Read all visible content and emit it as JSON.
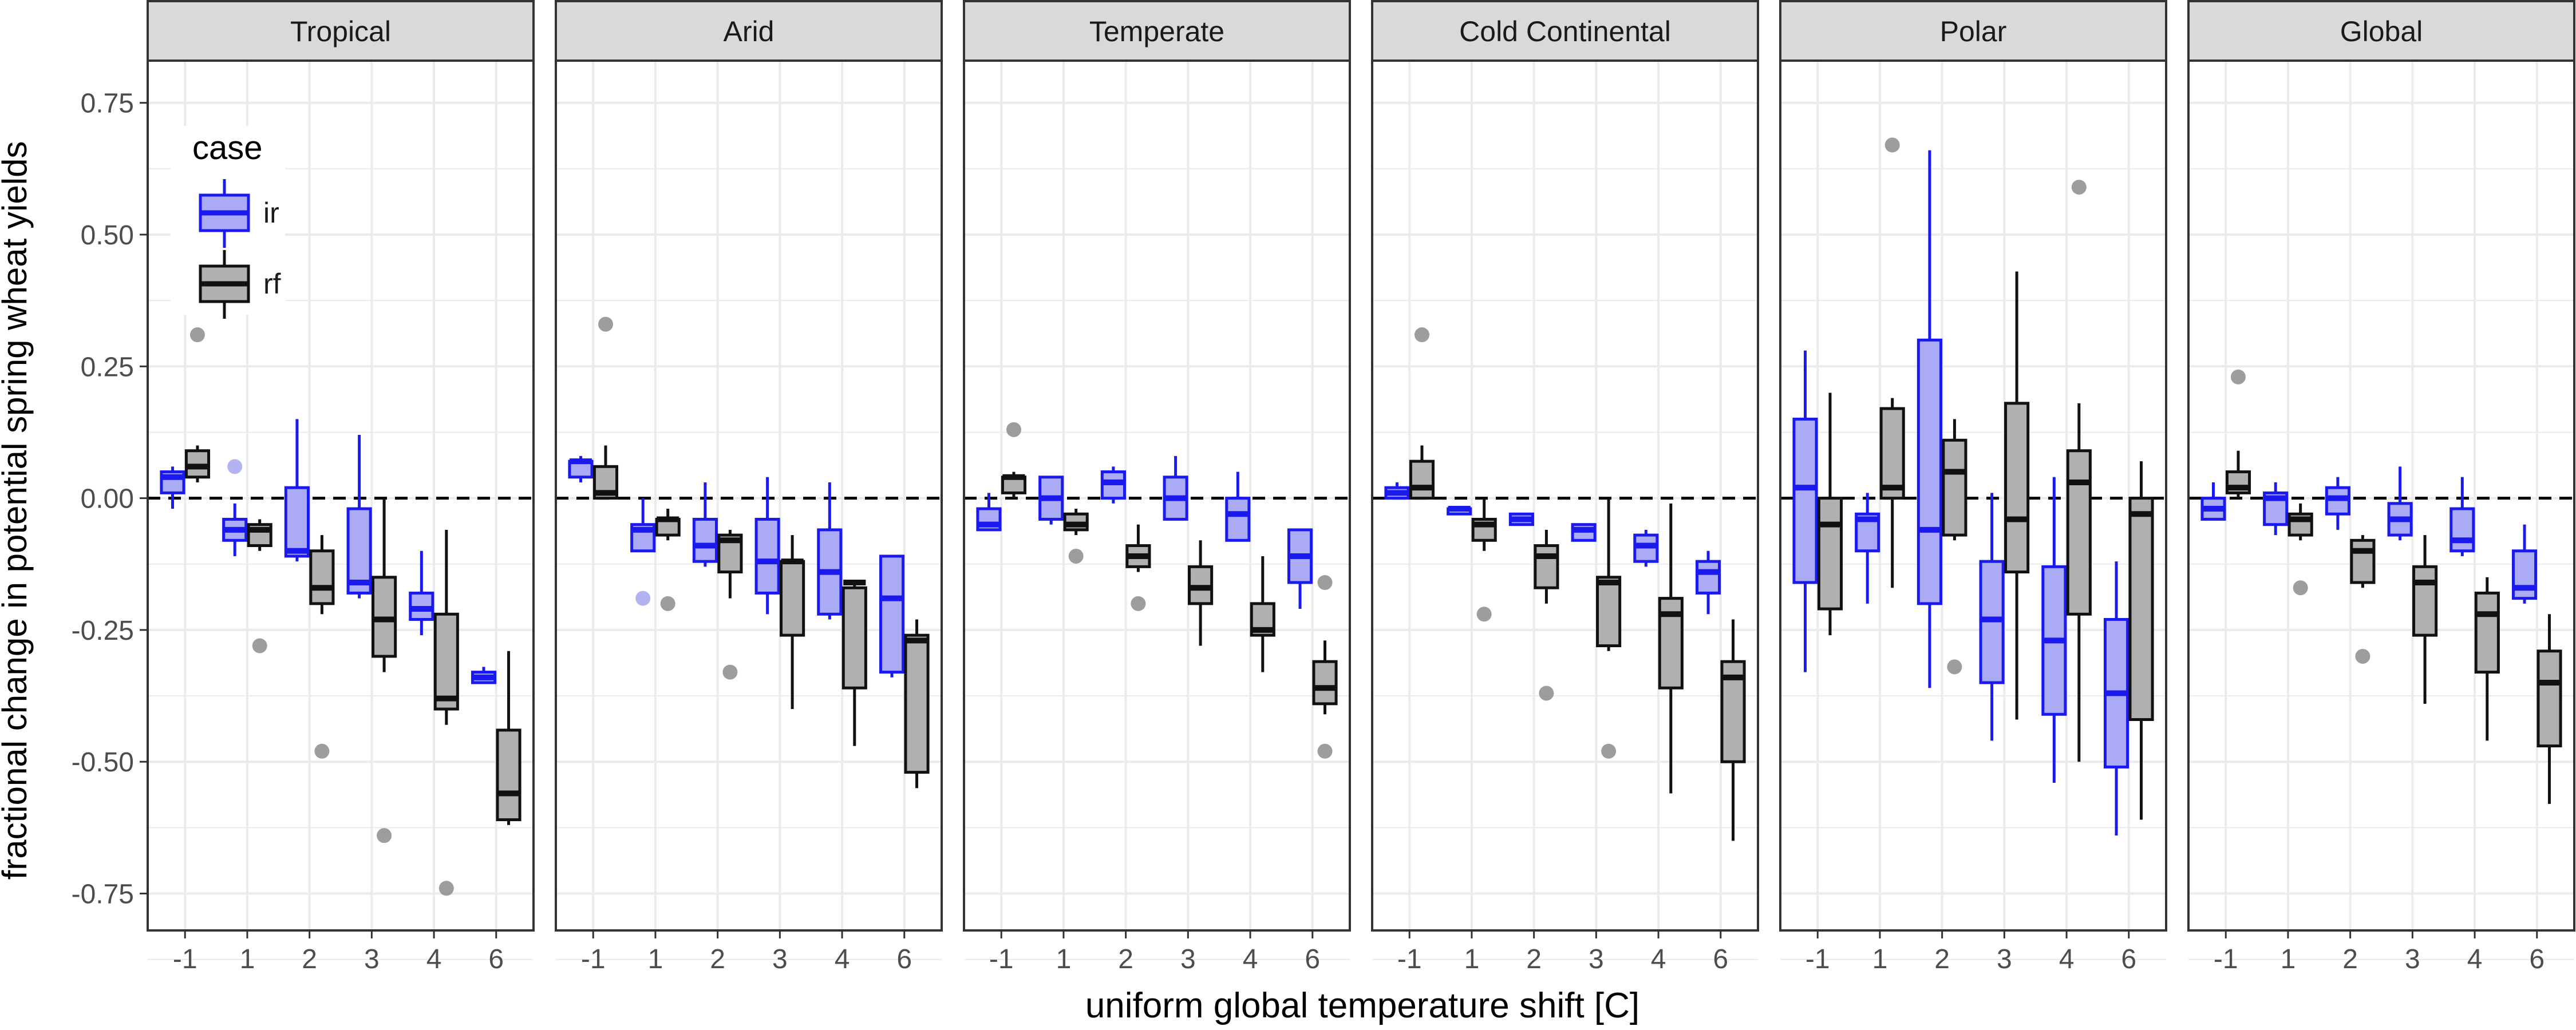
{
  "chart_data": {
    "type": "boxplot",
    "xlabel": "uniform global temperature shift [C]",
    "ylabel": "fractional change in potential spring wheat yields",
    "x_categories": [
      "-1",
      "1",
      "2",
      "3",
      "4",
      "6"
    ],
    "ylim": [
      -0.82,
      0.83
    ],
    "yticks": [
      -0.75,
      -0.5,
      -0.25,
      0.0,
      0.25,
      0.5,
      0.75
    ],
    "ytick_labels": [
      "-0.75",
      "-0.50",
      "-0.25",
      "0.00",
      "0.25",
      "0.50",
      "0.75"
    ],
    "reference_line": {
      "y": 0,
      "style": "dashed"
    },
    "grid": true,
    "legend": {
      "title": "case",
      "position": "top-left inside first panel",
      "entries": [
        {
          "label": "ir",
          "fill": "#aaaaf5",
          "stroke": "#1a1aee"
        },
        {
          "label": "rf",
          "fill": "#b0b0b0",
          "stroke": "#111111"
        }
      ]
    },
    "series_colors": {
      "ir": {
        "fill": "#aaaaf5",
        "stroke": "#1a1aee",
        "outlier": "#a6a6f0"
      },
      "rf": {
        "fill": "#b0b0b0",
        "stroke": "#111111",
        "outlier": "#8c8c8c"
      }
    },
    "panels": [
      {
        "name": "Tropical",
        "ir": [
          [
            -0.02,
            0.01,
            0.04,
            0.05,
            0.06
          ],
          [
            -0.11,
            -0.08,
            -0.06,
            -0.04,
            -0.01
          ],
          [
            -0.12,
            -0.11,
            -0.1,
            0.02,
            0.15
          ],
          [
            -0.19,
            -0.18,
            -0.16,
            -0.02,
            0.12
          ],
          [
            -0.26,
            -0.23,
            -0.21,
            -0.18,
            -0.1
          ],
          [
            -0.35,
            -0.35,
            -0.34,
            -0.33,
            -0.32
          ]
        ],
        "rf": [
          [
            0.03,
            0.04,
            0.06,
            0.09,
            0.1
          ],
          [
            -0.1,
            -0.09,
            -0.06,
            -0.05,
            -0.04
          ],
          [
            -0.22,
            -0.2,
            -0.17,
            -0.1,
            -0.07
          ],
          [
            -0.33,
            -0.3,
            -0.23,
            -0.15,
            0.0
          ],
          [
            -0.43,
            -0.4,
            -0.38,
            -0.22,
            -0.06
          ],
          [
            -0.62,
            -0.61,
            -0.56,
            -0.44,
            -0.29
          ]
        ],
        "ir_outliers": [
          [],
          [
            0.06
          ],
          [],
          [],
          [],
          []
        ],
        "rf_outliers": [
          [
            0.31
          ],
          [
            -0.28
          ],
          [
            -0.48
          ],
          [
            -0.64
          ],
          [
            -0.74
          ],
          []
        ]
      },
      {
        "name": "Arid",
        "ir": [
          [
            0.03,
            0.04,
            0.07,
            0.07,
            0.08
          ],
          [
            -0.1,
            -0.1,
            -0.06,
            -0.05,
            0.0
          ],
          [
            -0.13,
            -0.12,
            -0.09,
            -0.04,
            0.03
          ],
          [
            -0.22,
            -0.18,
            -0.12,
            -0.04,
            0.04
          ],
          [
            -0.23,
            -0.22,
            -0.14,
            -0.06,
            0.03
          ],
          [
            -0.34,
            -0.33,
            -0.19,
            -0.11,
            -0.11
          ]
        ],
        "rf": [
          [
            0.0,
            0.0,
            0.01,
            0.06,
            0.1
          ],
          [
            -0.08,
            -0.07,
            -0.04,
            -0.04,
            -0.02
          ],
          [
            -0.19,
            -0.14,
            -0.08,
            -0.07,
            -0.06
          ],
          [
            -0.4,
            -0.26,
            -0.12,
            -0.12,
            -0.07
          ],
          [
            -0.47,
            -0.36,
            -0.16,
            -0.17,
            -0.16
          ],
          [
            -0.55,
            -0.52,
            -0.27,
            -0.26,
            -0.23
          ]
        ],
        "ir_outliers": [
          [],
          [
            -0.19
          ],
          [],
          [],
          [],
          []
        ],
        "rf_outliers": [
          [
            0.33
          ],
          [
            -0.2
          ],
          [
            -0.33
          ],
          [],
          [],
          []
        ]
      },
      {
        "name": "Temperate",
        "ir": [
          [
            -0.06,
            -0.06,
            -0.05,
            -0.02,
            0.01
          ],
          [
            -0.05,
            -0.04,
            0.0,
            0.04,
            0.04
          ],
          [
            -0.01,
            0.0,
            0.03,
            0.05,
            0.06
          ],
          [
            -0.04,
            -0.04,
            0.0,
            0.04,
            0.08
          ],
          [
            -0.08,
            -0.08,
            -0.03,
            0.0,
            0.05
          ],
          [
            -0.21,
            -0.16,
            -0.11,
            -0.06,
            -0.06
          ]
        ],
        "rf": [
          [
            0.0,
            0.01,
            0.04,
            0.04,
            0.05
          ],
          [
            -0.07,
            -0.06,
            -0.05,
            -0.03,
            -0.02
          ],
          [
            -0.14,
            -0.13,
            -0.11,
            -0.09,
            -0.05
          ],
          [
            -0.28,
            -0.2,
            -0.17,
            -0.13,
            -0.08
          ],
          [
            -0.33,
            -0.26,
            -0.25,
            -0.2,
            -0.11
          ],
          [
            -0.41,
            -0.39,
            -0.36,
            -0.31,
            -0.27
          ]
        ],
        "ir_outliers": [
          [],
          [],
          [],
          [],
          [],
          []
        ],
        "rf_outliers": [
          [
            0.13
          ],
          [
            -0.11
          ],
          [
            -0.2
          ],
          [],
          [],
          [
            -0.16,
            -0.48
          ]
        ]
      },
      {
        "name": "Cold Continental",
        "ir": [
          [
            0.0,
            0.0,
            0.01,
            0.02,
            0.03
          ],
          [
            -0.03,
            -0.03,
            -0.02,
            -0.02,
            -0.02
          ],
          [
            -0.05,
            -0.05,
            -0.04,
            -0.03,
            -0.03
          ],
          [
            -0.08,
            -0.08,
            -0.06,
            -0.05,
            -0.05
          ],
          [
            -0.13,
            -0.12,
            -0.09,
            -0.07,
            -0.06
          ],
          [
            -0.22,
            -0.18,
            -0.14,
            -0.12,
            -0.1
          ]
        ],
        "rf": [
          [
            0.0,
            0.0,
            0.02,
            0.07,
            0.1
          ],
          [
            -0.1,
            -0.08,
            -0.05,
            -0.04,
            0.0
          ],
          [
            -0.2,
            -0.17,
            -0.11,
            -0.09,
            -0.06
          ],
          [
            -0.29,
            -0.28,
            -0.16,
            -0.15,
            0.0
          ],
          [
            -0.56,
            -0.36,
            -0.22,
            -0.19,
            -0.01
          ],
          [
            -0.65,
            -0.5,
            -0.34,
            -0.31,
            -0.23
          ]
        ],
        "ir_outliers": [
          [],
          [],
          [],
          [],
          [],
          []
        ],
        "rf_outliers": [
          [
            0.31
          ],
          [
            -0.22
          ],
          [
            -0.37
          ],
          [
            -0.48
          ],
          [],
          []
        ]
      },
      {
        "name": "Polar",
        "ir": [
          [
            -0.33,
            -0.16,
            0.02,
            0.15,
            0.28
          ],
          [
            -0.2,
            -0.1,
            -0.04,
            -0.03,
            0.01
          ],
          [
            -0.36,
            -0.2,
            -0.06,
            0.3,
            0.66
          ],
          [
            -0.46,
            -0.35,
            -0.23,
            -0.12,
            0.01
          ],
          [
            -0.54,
            -0.41,
            -0.27,
            -0.13,
            0.04
          ],
          [
            -0.64,
            -0.51,
            -0.37,
            -0.23,
            -0.12
          ]
        ],
        "rf": [
          [
            -0.26,
            -0.21,
            -0.05,
            0.0,
            0.2
          ],
          [
            -0.17,
            0.0,
            0.02,
            0.17,
            0.19
          ],
          [
            -0.08,
            -0.07,
            0.05,
            0.11,
            0.15
          ],
          [
            -0.42,
            -0.14,
            -0.04,
            0.18,
            0.43
          ],
          [
            -0.5,
            -0.22,
            0.03,
            0.09,
            0.18
          ],
          [
            -0.61,
            -0.42,
            -0.03,
            0.0,
            0.07
          ]
        ],
        "ir_outliers": [
          [],
          [],
          [],
          [],
          [],
          []
        ],
        "rf_outliers": [
          [],
          [
            0.67
          ],
          [
            -0.32
          ],
          [],
          [
            0.59
          ],
          []
        ]
      },
      {
        "name": "Global",
        "ir": [
          [
            -0.04,
            -0.04,
            -0.02,
            0.0,
            0.03
          ],
          [
            -0.07,
            -0.05,
            0.0,
            0.01,
            0.03
          ],
          [
            -0.06,
            -0.03,
            0.0,
            0.02,
            0.04
          ],
          [
            -0.08,
            -0.07,
            -0.04,
            -0.01,
            0.06
          ],
          [
            -0.11,
            -0.1,
            -0.08,
            -0.02,
            0.04
          ],
          [
            -0.2,
            -0.19,
            -0.17,
            -0.1,
            -0.05
          ]
        ],
        "rf": [
          [
            0.0,
            0.01,
            0.02,
            0.05,
            0.09
          ],
          [
            -0.08,
            -0.07,
            -0.04,
            -0.03,
            -0.01
          ],
          [
            -0.17,
            -0.16,
            -0.1,
            -0.08,
            -0.07
          ],
          [
            -0.39,
            -0.26,
            -0.16,
            -0.13,
            -0.07
          ],
          [
            -0.46,
            -0.33,
            -0.22,
            -0.18,
            -0.15
          ],
          [
            -0.58,
            -0.47,
            -0.35,
            -0.29,
            -0.22
          ]
        ],
        "ir_outliers": [
          [],
          [],
          [],
          [],
          [],
          []
        ],
        "rf_outliers": [
          [
            0.23
          ],
          [
            -0.17
          ],
          [
            -0.3
          ],
          [],
          [],
          []
        ]
      }
    ]
  }
}
